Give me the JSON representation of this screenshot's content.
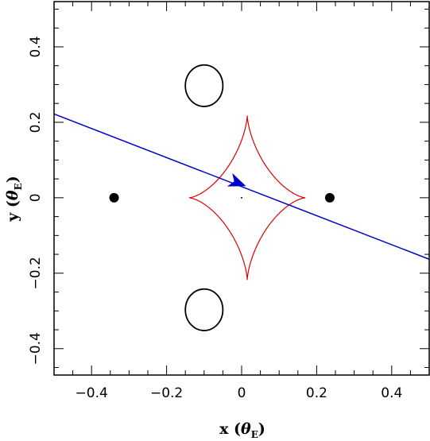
{
  "chart_data": {
    "type": "scatter",
    "xlabel": {
      "main": "x (",
      "theta": "θ",
      "sub": "E",
      "close": ")"
    },
    "ylabel": {
      "main": "y (",
      "theta": "θ",
      "sub": "E",
      "close": ")"
    },
    "xlim": [
      -0.5,
      0.5
    ],
    "ylim": [
      -0.47,
      0.52
    ],
    "x_ticks": [
      -0.4,
      -0.2,
      0,
      0.2,
      0.4
    ],
    "x_tick_labels": [
      "−0.4",
      "−0.2",
      "0",
      "0.2",
      "0.4"
    ],
    "y_ticks": [
      -0.4,
      -0.2,
      0,
      0.2,
      0.4
    ],
    "y_tick_labels": [
      "−0.4",
      "−0.2",
      "0",
      "0.2",
      "0.4"
    ],
    "grid": false,
    "lens_points": [
      {
        "x": -0.34,
        "y": 0.0
      },
      {
        "x": 0.235,
        "y": 0.0
      }
    ],
    "critical_curves": [
      {
        "cx": -0.1,
        "cy": 0.297,
        "rx": 0.05,
        "ry": 0.055
      },
      {
        "cx": -0.1,
        "cy": -0.297,
        "rx": 0.05,
        "ry": 0.055
      }
    ],
    "caustic": {
      "cx": 0.015,
      "cy": 0.0,
      "ax": 0.155,
      "ay_top": 0.218,
      "ay_bottom": 0.218,
      "color": "#dd0000"
    },
    "center_dot": {
      "x": 0.0,
      "y": 0.0
    },
    "trajectory": {
      "x": [
        -0.5,
        0.5
      ],
      "y": [
        0.222,
        -0.163
      ],
      "color": "#0000cc",
      "arrow_at": {
        "x": -0.012,
        "y": 0.04
      }
    }
  }
}
